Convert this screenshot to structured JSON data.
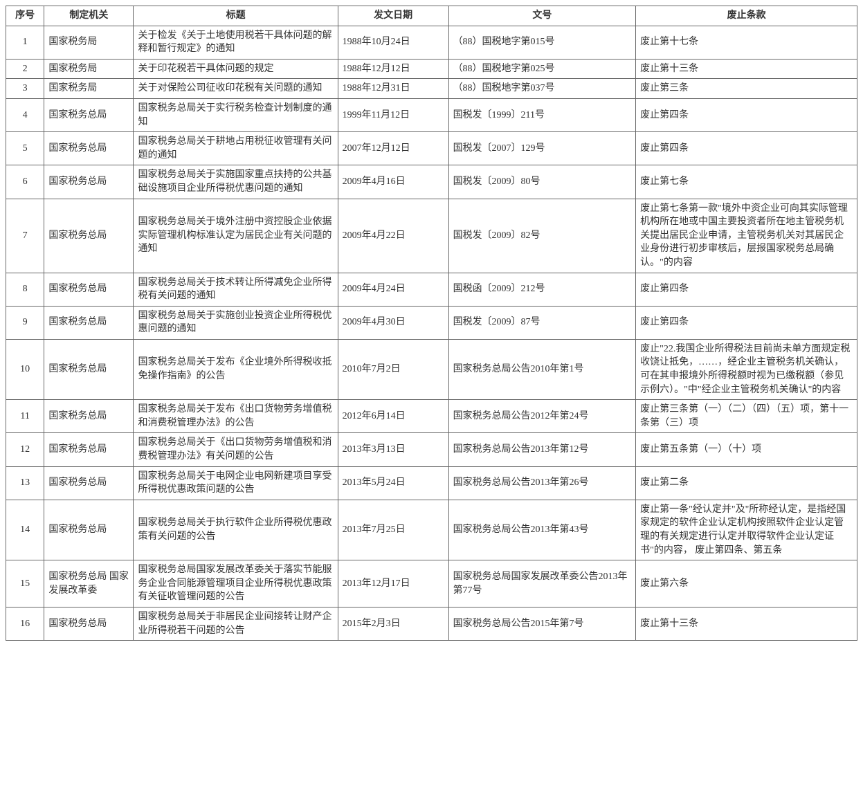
{
  "table": {
    "columns": [
      "序号",
      "制定机关",
      "标题",
      "发文日期",
      "文号",
      "废止条款"
    ],
    "rows": [
      {
        "seq": "1",
        "agency": "国家税务局",
        "title": "关于检发《关于土地使用税若干具体问题的解释和暂行规定》的通知",
        "date": "1988年10月24日",
        "docnum": "（88）国税地字第015号",
        "abolish": "废止第十七条"
      },
      {
        "seq": "2",
        "agency": "国家税务局",
        "title": "关于印花税若干具体问题的规定",
        "date": "1988年12月12日",
        "docnum": "（88）国税地字第025号",
        "abolish": "废止第十三条"
      },
      {
        "seq": "3",
        "agency": "国家税务局",
        "title": "关于对保险公司征收印花税有关问题的通知",
        "date": "1988年12月31日",
        "docnum": "（88）国税地字第037号",
        "abolish": "废止第三条"
      },
      {
        "seq": "4",
        "agency": "国家税务总局",
        "title": "国家税务总局关于实行税务检查计划制度的通知",
        "date": "1999年11月12日",
        "docnum": "国税发〔1999〕211号",
        "abolish": "废止第四条"
      },
      {
        "seq": "5",
        "agency": "国家税务总局",
        "title": "国家税务总局关于耕地占用税征收管理有关问题的通知",
        "date": "2007年12月12日",
        "docnum": "国税发〔2007〕129号",
        "abolish": "废止第四条"
      },
      {
        "seq": "6",
        "agency": "国家税务总局",
        "title": "国家税务总局关于实施国家重点扶持的公共基础设施项目企业所得税优惠问题的通知",
        "date": "2009年4月16日",
        "docnum": "国税发〔2009〕80号",
        "abolish": "废止第七条"
      },
      {
        "seq": "7",
        "agency": "国家税务总局",
        "title": "国家税务总局关于境外注册中资控股企业依据实际管理机构标准认定为居民企业有关问题的通知",
        "date": "2009年4月22日",
        "docnum": "国税发〔2009〕82号",
        "abolish": "废止第七条第一款\"境外中资企业可向其实际管理机构所在地或中国主要投资者所在地主管税务机关提出居民企业申请，主管税务机关对其居民企业身份进行初步审核后，层报国家税务总局确认。\"的内容"
      },
      {
        "seq": "8",
        "agency": "国家税务总局",
        "title": "国家税务总局关于技术转让所得减免企业所得税有关问题的通知",
        "date": "2009年4月24日",
        "docnum": "国税函〔2009〕212号",
        "abolish": "废止第四条"
      },
      {
        "seq": "9",
        "agency": "国家税务总局",
        "title": "国家税务总局关于实施创业投资企业所得税优惠问题的通知",
        "date": "2009年4月30日",
        "docnum": "国税发〔2009〕87号",
        "abolish": "废止第四条"
      },
      {
        "seq": "10",
        "agency": "国家税务总局",
        "title": "国家税务总局关于发布《企业境外所得税收抵免操作指南》的公告",
        "date": "2010年7月2日",
        "docnum": "国家税务总局公告2010年第1号",
        "abolish": "废止\"22.我国企业所得税法目前尚未单方面规定税收饶让抵免，……，经企业主管税务机关确认，可在其申报境外所得税额时视为已缴税额（参见示例六）。\"中\"经企业主管税务机关确认\"的内容"
      },
      {
        "seq": "11",
        "agency": "国家税务总局",
        "title": "国家税务总局关于发布《出口货物劳务增值税和消费税管理办法》的公告",
        "date": "2012年6月14日",
        "docnum": "国家税务总局公告2012年第24号",
        "abolish": "废止第三条第（一）（二）（四）（五）项，第十一条第（三）项"
      },
      {
        "seq": "12",
        "agency": "国家税务总局",
        "title": "国家税务总局关于《出口货物劳务增值税和消费税管理办法》有关问题的公告",
        "date": "2013年3月13日",
        "docnum": "国家税务总局公告2013年第12号",
        "abolish": "废止第五条第（一）（十）项"
      },
      {
        "seq": "13",
        "agency": "国家税务总局",
        "title": "国家税务总局关于电网企业电网新建项目享受所得税优惠政策问题的公告",
        "date": "2013年5月24日",
        "docnum": "国家税务总局公告2013年第26号",
        "abolish": "废止第二条"
      },
      {
        "seq": "14",
        "agency": "国家税务总局",
        "title": "国家税务总局关于执行软件企业所得税优惠政策有关问题的公告",
        "date": "2013年7月25日",
        "docnum": "国家税务总局公告2013年第43号",
        "abolish": "废止第一条\"经认定并\"及\"所称经认定，是指经国家规定的软件企业认定机构按照软件企业认定管理的有关规定进行认定并取得软件企业认定证书\"的内容，\n废止第四条、第五条"
      },
      {
        "seq": "15",
        "agency": "国家税务总局 国家发展改革委",
        "title": "国家税务总局国家发展改革委关于落实节能服务企业合同能源管理项目企业所得税优惠政策有关征收管理问题的公告",
        "date": "2013年12月17日",
        "docnum": "国家税务总局国家发展改革委公告2013年第77号",
        "abolish": "废止第六条"
      },
      {
        "seq": "16",
        "agency": "国家税务总局",
        "title": "国家税务总局关于非居民企业间接转让财产企业所得税若干问题的公告",
        "date": "2015年2月3日",
        "docnum": "国家税务总局公告2015年第7号",
        "abolish": "废止第十三条"
      }
    ],
    "border_color": "#666666",
    "text_color": "#333333",
    "background_color": "#ffffff",
    "font_family": "SimSun",
    "font_size_pt": 11,
    "column_widths_pct": [
      4.5,
      10.5,
      24,
      13,
      22,
      26
    ],
    "column_align": [
      "center",
      "left",
      "left",
      "left",
      "left",
      "left"
    ]
  }
}
